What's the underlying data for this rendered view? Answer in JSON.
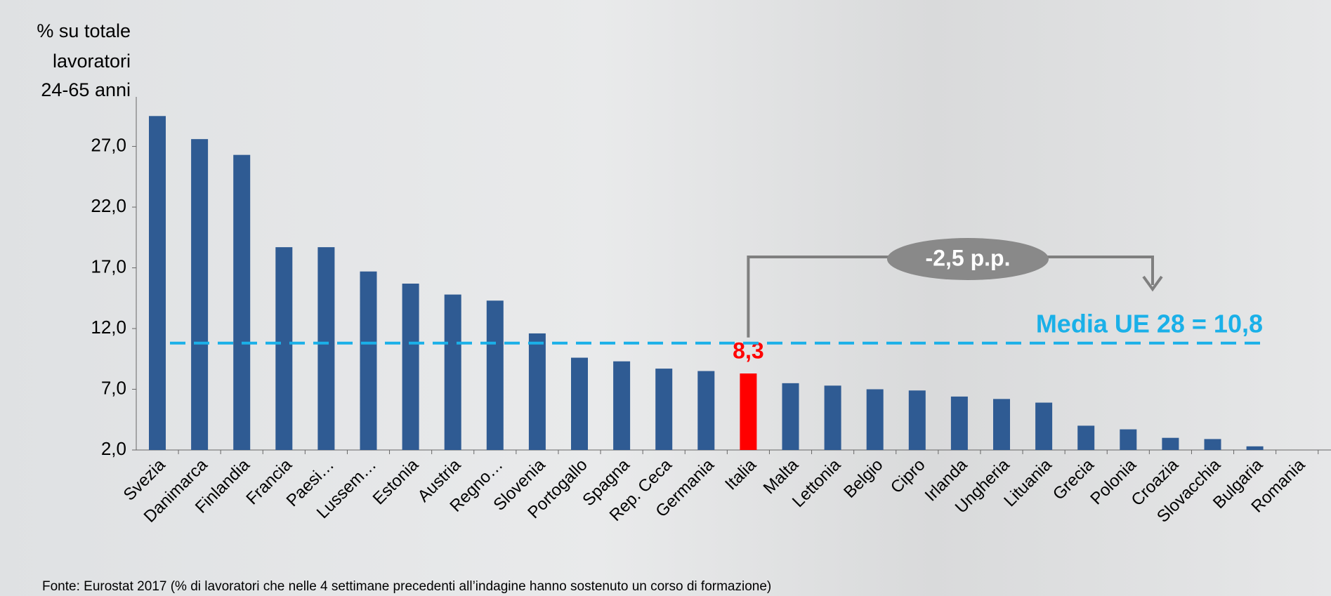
{
  "chart_data": {
    "type": "bar",
    "y_label": [
      "% su totale",
      "lavoratori",
      "24-65 anni"
    ],
    "categories": [
      "Svezia",
      "Danimarca",
      "Finlandia",
      "Francia",
      "Paesi…",
      "Lussem…",
      "Estonia",
      "Austria",
      "Regno…",
      "Slovenia",
      "Portogallo",
      "Spagna",
      "Rep. Ceca",
      "Germania",
      "Italia",
      "Malta",
      "Lettonia",
      "Belgio",
      "Cipro",
      "Irlanda",
      "Ungheria",
      "Lituania",
      "Grecia",
      "Polonia",
      "Croazia",
      "Slovacchia",
      "Bulgaria",
      "Romania"
    ],
    "values": [
      29.5,
      27.6,
      26.3,
      18.7,
      18.7,
      16.7,
      15.7,
      14.8,
      14.3,
      11.6,
      9.6,
      9.3,
      8.7,
      8.5,
      8.3,
      7.5,
      7.3,
      7.0,
      6.9,
      6.4,
      6.2,
      5.9,
      4.0,
      3.7,
      3.0,
      2.9,
      2.3,
      2.0
    ],
    "value_labels": [
      null,
      null,
      null,
      null,
      null,
      null,
      null,
      null,
      null,
      null,
      null,
      null,
      null,
      null,
      "8,3",
      null,
      null,
      null,
      null,
      null,
      null,
      null,
      null,
      null,
      null,
      null,
      null,
      null
    ],
    "colors": [
      "#2f5b93",
      "#2f5b93",
      "#2f5b93",
      "#2f5b93",
      "#2f5b93",
      "#2f5b93",
      "#2f5b93",
      "#2f5b93",
      "#2f5b93",
      "#2f5b93",
      "#2f5b93",
      "#2f5b93",
      "#2f5b93",
      "#2f5b93",
      "#ff0000",
      "#2f5b93",
      "#2f5b93",
      "#2f5b93",
      "#2f5b93",
      "#2f5b93",
      "#2f5b93",
      "#2f5b93",
      "#2f5b93",
      "#2f5b93",
      "#2f5b93",
      "#2f5b93",
      "#2f5b93",
      "#2f5b93"
    ],
    "ylim": [
      2.0,
      30.5
    ],
    "yticks": [
      {
        "value": 2,
        "label": "2,0"
      },
      {
        "value": 7,
        "label": "7,0"
      },
      {
        "value": 12,
        "label": "12,0"
      },
      {
        "value": 17,
        "label": "17,0"
      },
      {
        "value": 22,
        "label": "22,0"
      },
      {
        "value": 27,
        "label": "27,0"
      }
    ],
    "reference_line": {
      "value": 10.8,
      "label": "Media UE 28 = 10,8",
      "color": "#1ab0e8"
    },
    "gap_label": "-2,5 p.p.",
    "source": "Fonte: Eurostat 2017 (% di lavoratori che nelle 4 settimane precedenti all’indagine hanno sostenuto un corso di formazione)"
  }
}
